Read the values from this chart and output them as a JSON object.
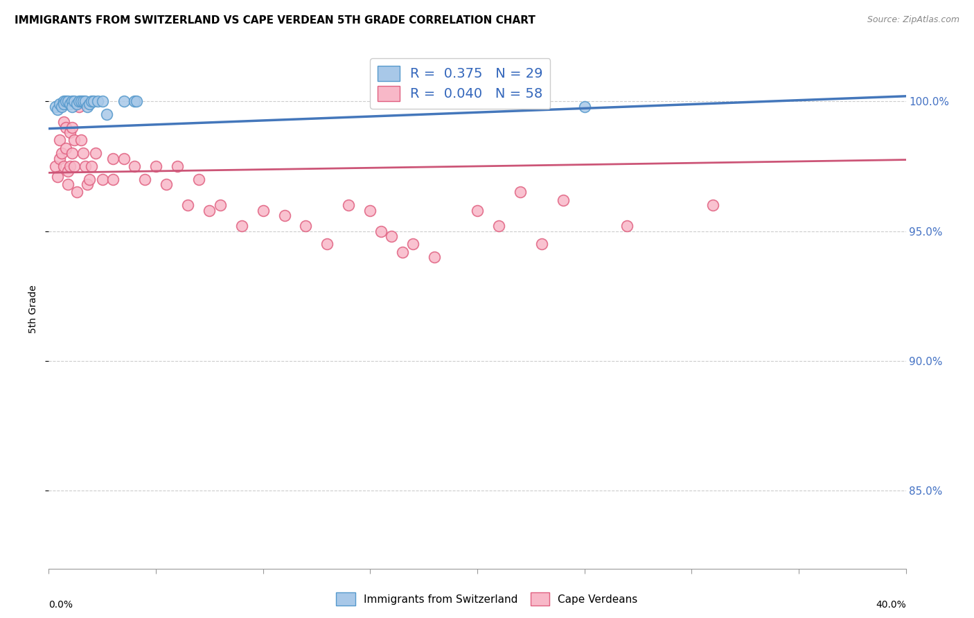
{
  "title": "IMMIGRANTS FROM SWITZERLAND VS CAPE VERDEAN 5TH GRADE CORRELATION CHART",
  "source": "Source: ZipAtlas.com",
  "ylabel": "5th Grade",
  "ytick_labels": [
    "85.0%",
    "90.0%",
    "95.0%",
    "100.0%"
  ],
  "ytick_values": [
    0.85,
    0.9,
    0.95,
    1.0
  ],
  "xlim": [
    0.0,
    0.4
  ],
  "ylim": [
    0.82,
    1.02
  ],
  "legend1_r": "0.375",
  "legend1_n": "29",
  "legend2_r": "0.040",
  "legend2_n": "58",
  "legend_label1": "Immigrants from Switzerland",
  "legend_label2": "Cape Verdeans",
  "blue_fill": "#a8c8e8",
  "blue_edge": "#5599cc",
  "pink_fill": "#f8b8c8",
  "pink_edge": "#e06080",
  "blue_line": "#4477bb",
  "pink_line": "#cc5577",
  "scatter_blue_x": [
    0.003,
    0.004,
    0.005,
    0.006,
    0.007,
    0.007,
    0.008,
    0.009,
    0.01,
    0.011,
    0.011,
    0.012,
    0.013,
    0.014,
    0.015,
    0.016,
    0.017,
    0.018,
    0.019,
    0.02,
    0.021,
    0.023,
    0.025,
    0.027,
    0.035,
    0.04,
    0.041,
    0.19,
    0.25
  ],
  "scatter_blue_y": [
    0.998,
    0.997,
    0.999,
    0.998,
    1.0,
    0.999,
    1.0,
    1.0,
    0.999,
    1.0,
    0.998,
    1.0,
    0.999,
    1.0,
    1.0,
    1.0,
    1.0,
    0.998,
    0.999,
    1.0,
    1.0,
    1.0,
    1.0,
    0.995,
    1.0,
    1.0,
    1.0,
    1.0,
    0.998
  ],
  "scatter_pink_x": [
    0.003,
    0.004,
    0.005,
    0.005,
    0.006,
    0.007,
    0.007,
    0.008,
    0.008,
    0.009,
    0.009,
    0.01,
    0.01,
    0.011,
    0.011,
    0.012,
    0.012,
    0.013,
    0.014,
    0.015,
    0.016,
    0.017,
    0.018,
    0.019,
    0.02,
    0.022,
    0.025,
    0.03,
    0.03,
    0.035,
    0.04,
    0.045,
    0.05,
    0.055,
    0.06,
    0.065,
    0.07,
    0.075,
    0.08,
    0.09,
    0.1,
    0.11,
    0.12,
    0.13,
    0.14,
    0.15,
    0.155,
    0.16,
    0.165,
    0.17,
    0.18,
    0.2,
    0.21,
    0.22,
    0.23,
    0.24,
    0.27,
    0.31
  ],
  "scatter_pink_y": [
    0.975,
    0.971,
    0.985,
    0.978,
    0.98,
    0.992,
    0.975,
    0.99,
    0.982,
    0.973,
    0.968,
    0.988,
    0.975,
    0.99,
    0.98,
    0.985,
    0.975,
    0.965,
    0.998,
    0.985,
    0.98,
    0.975,
    0.968,
    0.97,
    0.975,
    0.98,
    0.97,
    0.978,
    0.97,
    0.978,
    0.975,
    0.97,
    0.975,
    0.968,
    0.975,
    0.96,
    0.97,
    0.958,
    0.96,
    0.952,
    0.958,
    0.956,
    0.952,
    0.945,
    0.96,
    0.958,
    0.95,
    0.948,
    0.942,
    0.945,
    0.94,
    0.958,
    0.952,
    0.965,
    0.945,
    0.962,
    0.952,
    0.96
  ],
  "blue_trendline_x": [
    0.0,
    0.4
  ],
  "blue_trendline_y": [
    0.9895,
    1.002
  ],
  "pink_trendline_x": [
    0.0,
    0.4
  ],
  "pink_trendline_y": [
    0.9725,
    0.9775
  ]
}
